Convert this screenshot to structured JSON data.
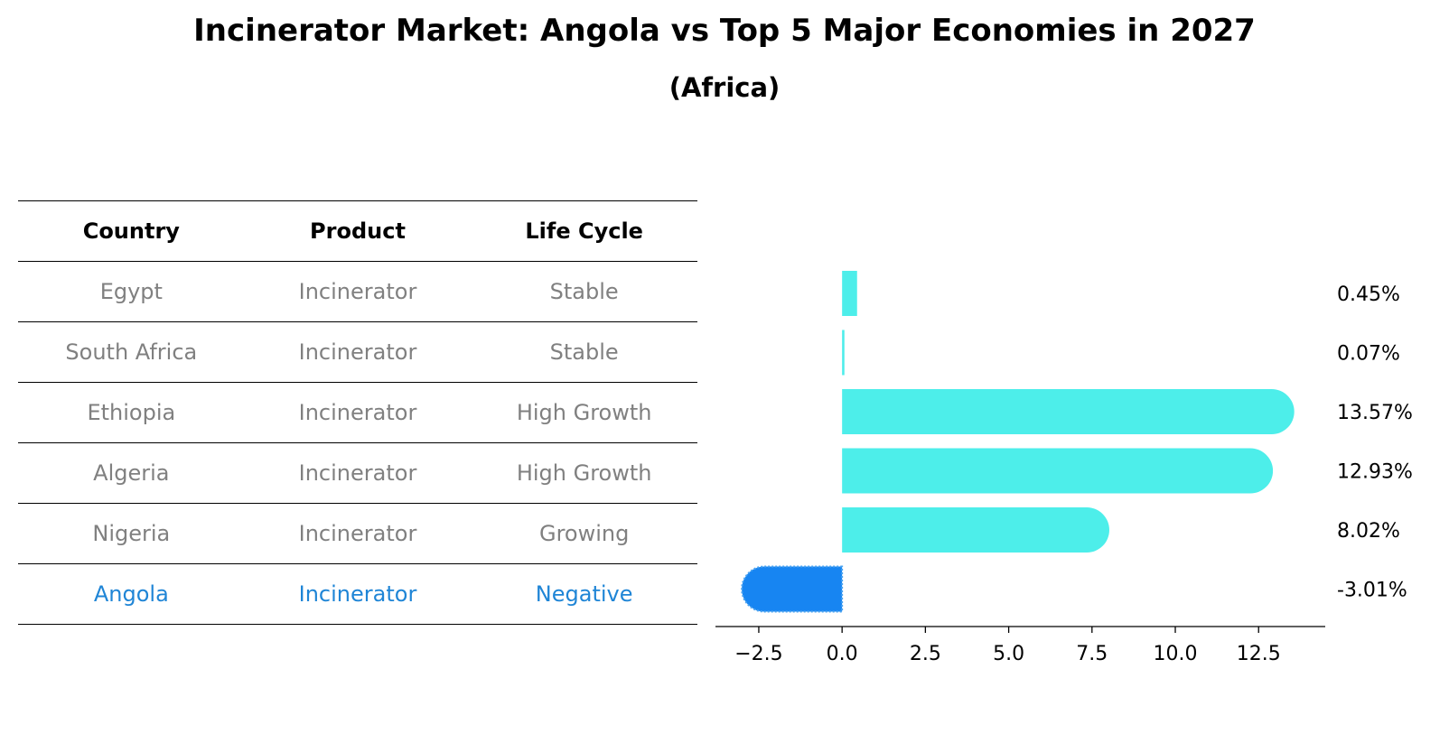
{
  "title": "Incinerator Market: Angola vs Top 5 Major Economies in 2027",
  "subtitle": "(Africa)",
  "table": {
    "headers": [
      "Country",
      "Product",
      "Life Cycle"
    ],
    "rows": [
      [
        "Egypt",
        "Incinerator",
        "Stable"
      ],
      [
        "South Africa",
        "Incinerator",
        "Stable"
      ],
      [
        "Ethiopia",
        "Incinerator",
        "High Growth"
      ],
      [
        "Algeria",
        "Incinerator",
        "High Growth"
      ],
      [
        "Nigeria",
        "Incinerator",
        "Growing"
      ],
      [
        "Angola",
        "Incinerator",
        "Negative"
      ]
    ],
    "highlight_row": 5
  },
  "colors": {
    "bar": "#4deeea",
    "highlight": "#1785f2",
    "table_text": "#808080",
    "table_highlight": "#1f85d6"
  },
  "chart_data": {
    "type": "bar",
    "orientation": "horizontal",
    "categories": [
      "Egypt",
      "South Africa",
      "Ethiopia",
      "Algeria",
      "Nigeria",
      "Angola"
    ],
    "values": [
      0.45,
      0.07,
      13.57,
      12.93,
      8.02,
      -3.01
    ],
    "value_labels": [
      "0.45%",
      "0.07%",
      "13.57%",
      "12.93%",
      "8.02%",
      "-3.01%"
    ],
    "xlim": [
      -3.8,
      14.5
    ],
    "xticks": [
      -2.5,
      0.0,
      2.5,
      5.0,
      7.5,
      10.0,
      12.5
    ],
    "xtick_labels": [
      "−2.5",
      "0.0",
      "2.5",
      "5.0",
      "7.5",
      "10.0",
      "12.5"
    ],
    "highlight": "Angola"
  }
}
